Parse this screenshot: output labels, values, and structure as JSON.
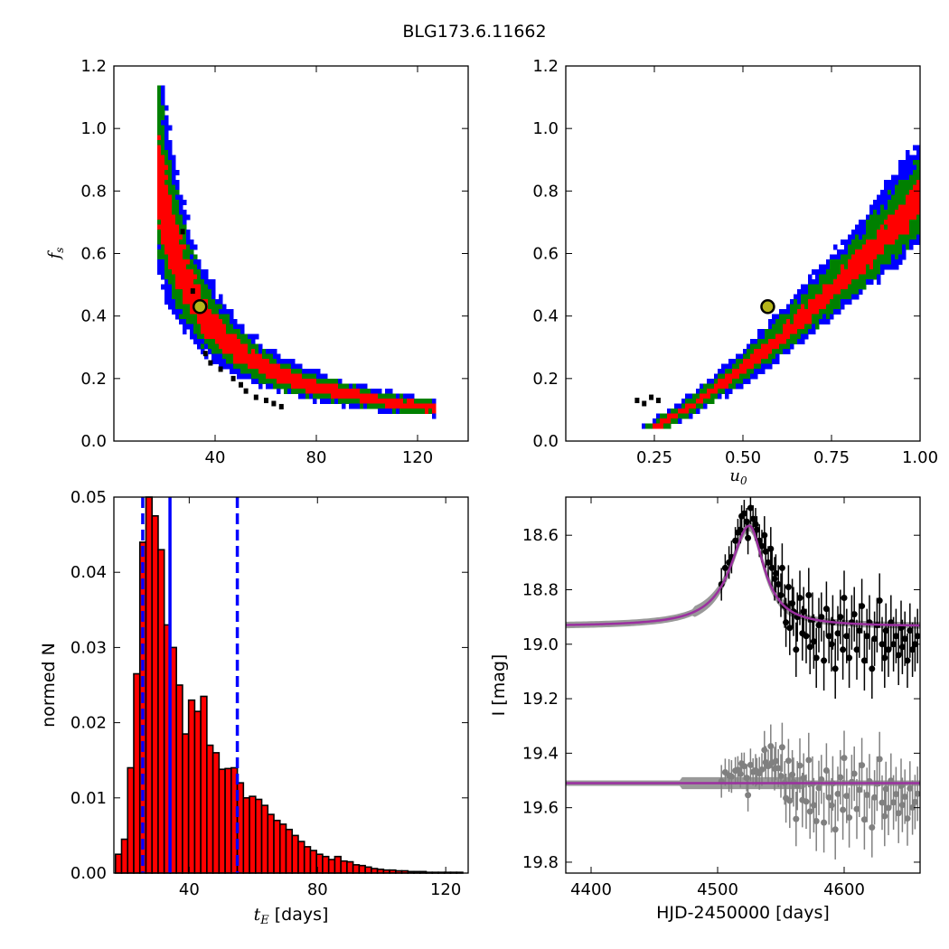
{
  "figure": {
    "title": "BLG173.6.11662",
    "colors": {
      "blue": "#0000ff",
      "green": "#008000",
      "red": "#ff0000",
      "black": "#000000",
      "grey": "#808080",
      "magenta": "#9b30a0",
      "marker": "#b5b51a"
    }
  },
  "chart_data": [
    {
      "id": "tE_vs_fs",
      "type": "heatmap",
      "title": "",
      "xlabel": "",
      "ylabel": "f_s",
      "ylabel_sub": "s",
      "ylabel_base": "f",
      "xlim": [
        0,
        140
      ],
      "ylim": [
        0,
        1.2
      ],
      "xticks": [
        40,
        80,
        120
      ],
      "yticks": [
        0.0,
        0.2,
        0.4,
        0.6,
        0.8,
        1.0,
        1.2
      ],
      "xtick_labels": [
        "40",
        "80",
        "120"
      ],
      "ytick_labels": [
        "0.0",
        "0.2",
        "0.4",
        "0.6",
        "0.8",
        "1.0",
        "1.2"
      ],
      "levels": [
        "blue",
        "green",
        "red",
        "black"
      ],
      "curve": "f_s ≈ 14.3 / t_E",
      "best_fit": {
        "x": 34,
        "y": 0.43
      }
    },
    {
      "id": "u0_vs_fs",
      "type": "heatmap",
      "title": "",
      "xlabel": "u_0",
      "xlabel_base": "u",
      "xlabel_sub": "0",
      "ylabel": "",
      "xlim": [
        0,
        1.0
      ],
      "ylim": [
        0,
        1.2
      ],
      "xticks": [
        0.25,
        0.5,
        0.75,
        1.0
      ],
      "yticks": [
        0.0,
        0.2,
        0.4,
        0.6,
        0.8,
        1.0,
        1.2
      ],
      "xtick_labels": [
        "0.25",
        "0.50",
        "0.75",
        "1.00"
      ],
      "ytick_labels": [
        "0.0",
        "0.2",
        "0.4",
        "0.6",
        "0.8",
        "1.0",
        "1.2"
      ],
      "levels": [
        "blue",
        "green",
        "red",
        "black"
      ],
      "best_fit": {
        "x": 0.57,
        "y": 0.43
      }
    },
    {
      "id": "tE_histogram",
      "type": "bar",
      "title": "",
      "xlabel": "t_E [days]",
      "xlabel_base": "t",
      "xlabel_sub": "E",
      "xlabel_rest": " [days]",
      "ylabel": "normed N",
      "xlim": [
        16.5,
        127
      ],
      "ylim": [
        0,
        0.05
      ],
      "xticks": [
        40,
        80,
        120
      ],
      "yticks": [
        0.0,
        0.01,
        0.02,
        0.03,
        0.04,
        0.05
      ],
      "xtick_labels": [
        "40",
        "80",
        "120"
      ],
      "ytick_labels": [
        "0.00",
        "0.01",
        "0.02",
        "0.03",
        "0.04",
        "0.05"
      ],
      "bin_start": 17.0,
      "bin_width": 1.9,
      "values": [
        0.0025,
        0.0045,
        0.014,
        0.0265,
        0.044,
        0.05,
        0.0475,
        0.043,
        0.033,
        0.03,
        0.025,
        0.0185,
        0.023,
        0.0215,
        0.0235,
        0.017,
        0.016,
        0.0138,
        0.0139,
        0.014,
        0.012,
        0.01,
        0.0102,
        0.0098,
        0.009,
        0.0078,
        0.007,
        0.0065,
        0.0058,
        0.005,
        0.0042,
        0.0035,
        0.003,
        0.0025,
        0.0022,
        0.0018,
        0.0022,
        0.0016,
        0.0015,
        0.0011,
        0.001,
        0.0008,
        0.0006,
        0.0005,
        0.0004,
        0.0004,
        0.0003,
        0.0003,
        0.0002,
        0.0002,
        0.0002,
        0.0001,
        0.0001,
        0.0001,
        0.0001,
        0.0001,
        0.0001
      ],
      "vlines": [
        {
          "x": 34,
          "style": "solid"
        },
        {
          "x": 25.5,
          "style": "dashed"
        },
        {
          "x": 55,
          "style": "dashed"
        }
      ]
    },
    {
      "id": "light_curve",
      "type": "scatter",
      "title": "",
      "xlabel": "HJD-2450000 [days]",
      "ylabel": "I [mag]",
      "xlim": [
        4380,
        4660
      ],
      "ylim": [
        19.84,
        18.46
      ],
      "xticks": [
        4400,
        4500,
        4600
      ],
      "yticks": [
        18.6,
        18.8,
        19.0,
        19.2,
        19.4,
        19.6,
        19.8
      ],
      "xtick_labels": [
        "4400",
        "4500",
        "4600"
      ],
      "ytick_labels": [
        "18.6",
        "18.8",
        "19.0",
        "19.2",
        "19.4",
        "19.6",
        "19.8"
      ],
      "model": {
        "baseline": 18.935,
        "peak_mag": 18.565,
        "t0": 4525,
        "rise_tau": 18,
        "fall_tau": 14
      },
      "residual_offset": 19.51,
      "series": [
        {
          "color": "black",
          "points": [
            [
              4503,
              18.78,
              0.06
            ],
            [
              4506,
              18.72,
              0.05
            ],
            [
              4509,
              18.7,
              0.06
            ],
            [
              4511,
              18.68,
              0.06
            ],
            [
              4514,
              18.62,
              0.05
            ],
            [
              4516,
              18.59,
              0.05
            ],
            [
              4518,
              18.58,
              0.05
            ],
            [
              4519,
              18.53,
              0.04
            ],
            [
              4521,
              18.52,
              0.05
            ],
            [
              4523,
              18.55,
              0.05
            ],
            [
              4524,
              18.61,
              0.06
            ],
            [
              4526,
              18.5,
              0.06
            ],
            [
              4528,
              18.54,
              0.05
            ],
            [
              4530,
              18.56,
              0.06
            ],
            [
              4531,
              18.58,
              0.05
            ],
            [
              4533,
              18.62,
              0.06
            ],
            [
              4535,
              18.64,
              0.06
            ],
            [
              4537,
              18.6,
              0.07
            ],
            [
              4538,
              18.66,
              0.06
            ],
            [
              4540,
              18.7,
              0.06
            ],
            [
              4542,
              18.65,
              0.08
            ],
            [
              4543,
              18.72,
              0.07
            ],
            [
              4545,
              18.76,
              0.08
            ],
            [
              4546,
              18.74,
              0.07
            ],
            [
              4548,
              18.78,
              0.07
            ],
            [
              4550,
              18.82,
              0.08
            ],
            [
              4551,
              18.72,
              0.09
            ],
            [
              4553,
              18.86,
              0.08
            ],
            [
              4554,
              18.92,
              0.09
            ],
            [
              4556,
              18.79,
              0.08
            ],
            [
              4557,
              18.94,
              0.1
            ],
            [
              4559,
              18.85,
              0.09
            ],
            [
              4560,
              18.88,
              0.09
            ],
            [
              4562,
              19.02,
              0.1
            ],
            [
              4563,
              18.9,
              0.09
            ],
            [
              4565,
              18.83,
              0.1
            ],
            [
              4567,
              18.96,
              0.1
            ],
            [
              4568,
              18.88,
              0.09
            ],
            [
              4570,
              18.97,
              0.1
            ],
            [
              4572,
              18.82,
              0.1
            ],
            [
              4573,
              19.01,
              0.1
            ],
            [
              4575,
              18.91,
              0.1
            ],
            [
              4576,
              18.99,
              0.1
            ],
            [
              4578,
              19.05,
              0.11
            ],
            [
              4580,
              18.93,
              0.1
            ],
            [
              4582,
              18.9,
              0.09
            ],
            [
              4584,
              19.06,
              0.11
            ],
            [
              4586,
              18.87,
              0.1
            ],
            [
              4588,
              18.97,
              0.1
            ],
            [
              4590,
              19.0,
              0.1
            ],
            [
              4591,
              18.92,
              0.1
            ],
            [
              4593,
              19.09,
              0.11
            ],
            [
              4595,
              18.96,
              0.1
            ],
            [
              4597,
              18.9,
              0.1
            ],
            [
              4599,
              19.02,
              0.11
            ],
            [
              4600,
              18.83,
              0.1
            ],
            [
              4602,
              18.97,
              0.1
            ],
            [
              4604,
              19.05,
              0.11
            ],
            [
              4606,
              18.92,
              0.1
            ],
            [
              4608,
              18.89,
              0.1
            ],
            [
              4610,
              19.02,
              0.11
            ],
            [
              4612,
              18.95,
              0.1
            ],
            [
              4614,
              18.86,
              0.1
            ],
            [
              4616,
              19.06,
              0.11
            ],
            [
              4618,
              18.97,
              0.1
            ],
            [
              4620,
              18.92,
              0.1
            ],
            [
              4622,
              19.09,
              0.11
            ],
            [
              4624,
              18.98,
              0.1
            ],
            [
              4626,
              18.93,
              0.1
            ],
            [
              4628,
              18.84,
              0.1
            ],
            [
              4630,
              19.0,
              0.1
            ],
            [
              4632,
              19.05,
              0.11
            ],
            [
              4633,
              18.95,
              0.1
            ],
            [
              4635,
              19.02,
              0.1
            ],
            [
              4637,
              18.92,
              0.1
            ],
            [
              4639,
              19.0,
              0.1
            ],
            [
              4641,
              18.97,
              0.1
            ],
            [
              4643,
              19.04,
              0.11
            ],
            [
              4645,
              18.94,
              0.1
            ],
            [
              4646,
              19.01,
              0.1
            ],
            [
              4648,
              18.98,
              0.1
            ],
            [
              4650,
              19.06,
              0.1
            ],
            [
              4652,
              18.95,
              0.1
            ],
            [
              4654,
              19.02,
              0.1
            ],
            [
              4656,
              19.0,
              0.1
            ],
            [
              4658,
              18.97,
              0.1
            ]
          ]
        }
      ]
    }
  ]
}
